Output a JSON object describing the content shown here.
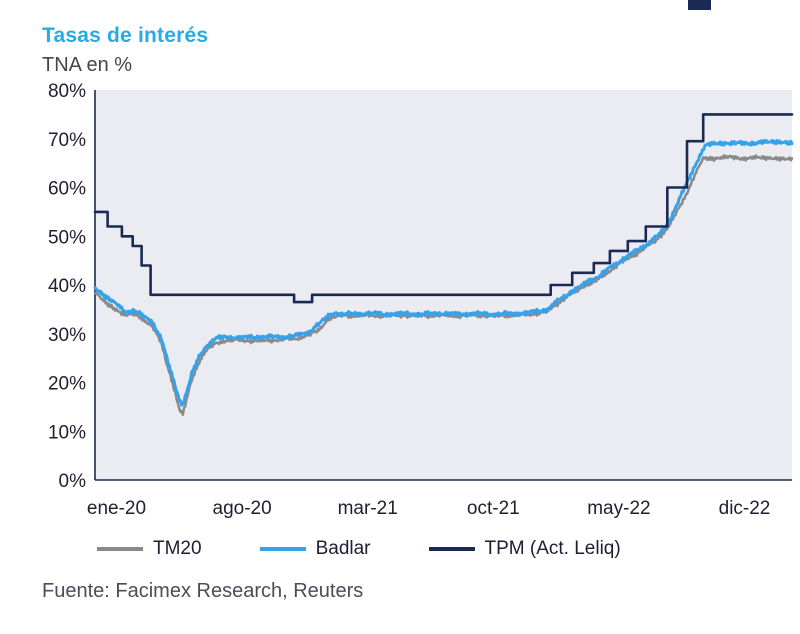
{
  "page": {
    "title": "Tasas de interés",
    "subtitle": "TNA en %",
    "source": "Fuente: Facimex Research, Reuters"
  },
  "colors": {
    "title_accent": "#29abe2",
    "corner_accent": "#1b2a55",
    "text_dark": "#1f1f30"
  },
  "chart_data": {
    "type": "line",
    "title": "Tasas de interés",
    "subtitle": "TNA en %",
    "xlabel": "",
    "ylabel": "TNA en %",
    "ylim": [
      0,
      80
    ],
    "x_range": [
      -1.2,
      37.65
    ],
    "x_unit": "months since Jan 2020",
    "grid": false,
    "legend_position": "bottom",
    "plot_bg": "#ebebf2",
    "axis_color": "#1b2a55",
    "yticks": [
      {
        "v": 0,
        "label": "0%"
      },
      {
        "v": 10,
        "label": "10%"
      },
      {
        "v": 20,
        "label": "20%"
      },
      {
        "v": 30,
        "label": "30%"
      },
      {
        "v": 40,
        "label": "40%"
      },
      {
        "v": 50,
        "label": "50%"
      },
      {
        "v": 60,
        "label": "60%"
      },
      {
        "v": 70,
        "label": "70%"
      },
      {
        "v": 80,
        "label": "80%"
      }
    ],
    "xticks": [
      {
        "x": 0,
        "label": "ene-20"
      },
      {
        "x": 7,
        "label": "ago-20"
      },
      {
        "x": 14,
        "label": "mar-21"
      },
      {
        "x": 21,
        "label": "oct-21"
      },
      {
        "x": 28,
        "label": "may-22"
      },
      {
        "x": 35,
        "label": "dic-22"
      }
    ],
    "series": [
      {
        "name": "TM20",
        "color": "#8a8a8a",
        "width": 2.5,
        "step": false,
        "jitter": 0.55,
        "seed": 2.5,
        "points": [
          [
            -1.2,
            38.5
          ],
          [
            -0.6,
            36.5
          ],
          [
            0,
            35
          ],
          [
            0.5,
            33.8
          ],
          [
            1,
            34
          ],
          [
            1.5,
            33
          ],
          [
            2,
            31.5
          ],
          [
            2.5,
            28
          ],
          [
            2.8,
            24
          ],
          [
            3.2,
            19
          ],
          [
            3.5,
            14.5
          ],
          [
            3.7,
            13.5
          ],
          [
            3.9,
            16.5
          ],
          [
            4.2,
            20.5
          ],
          [
            4.6,
            24
          ],
          [
            5,
            26.5
          ],
          [
            5.5,
            28
          ],
          [
            6,
            28.6
          ],
          [
            7,
            28.7
          ],
          [
            8,
            28.5
          ],
          [
            9,
            28.8
          ],
          [
            10,
            29
          ],
          [
            10.8,
            29.8
          ],
          [
            11.3,
            31
          ],
          [
            11.8,
            33
          ],
          [
            12.2,
            33.7
          ],
          [
            13,
            33.7
          ],
          [
            14,
            33.8
          ],
          [
            15,
            33.7
          ],
          [
            16,
            33.8
          ],
          [
            17,
            33.7
          ],
          [
            18,
            33.8
          ],
          [
            19,
            33.7
          ],
          [
            20,
            33.8
          ],
          [
            21,
            33.7
          ],
          [
            22,
            33.8
          ],
          [
            23,
            34
          ],
          [
            24,
            34.5
          ],
          [
            24.5,
            36
          ],
          [
            25.3,
            38
          ],
          [
            26.2,
            40
          ],
          [
            26.8,
            41
          ],
          [
            27.5,
            43
          ],
          [
            28.3,
            45
          ],
          [
            29,
            46.5
          ],
          [
            29.8,
            48.5
          ],
          [
            30.3,
            50
          ],
          [
            30.8,
            52
          ],
          [
            31.3,
            55.5
          ],
          [
            31.8,
            59
          ],
          [
            32.3,
            63
          ],
          [
            32.7,
            66
          ],
          [
            33.3,
            66
          ],
          [
            34,
            66.2
          ],
          [
            35,
            66
          ],
          [
            36,
            66.1
          ],
          [
            37.65,
            66
          ]
        ]
      },
      {
        "name": "Badlar",
        "color": "#35a3ec",
        "width": 3,
        "step": false,
        "jitter": 0.55,
        "seed": 0,
        "points": [
          [
            -1.2,
            39.5
          ],
          [
            -0.6,
            37.5
          ],
          [
            0,
            36
          ],
          [
            0.5,
            34.5
          ],
          [
            1,
            34.8
          ],
          [
            1.5,
            33.5
          ],
          [
            2,
            32.5
          ],
          [
            2.5,
            29
          ],
          [
            2.8,
            25
          ],
          [
            3.2,
            20
          ],
          [
            3.5,
            16.5
          ],
          [
            3.7,
            15.5
          ],
          [
            3.9,
            18
          ],
          [
            4.2,
            22
          ],
          [
            4.6,
            25.5
          ],
          [
            5,
            27.5
          ],
          [
            5.5,
            29
          ],
          [
            6,
            29.3
          ],
          [
            7,
            29.2
          ],
          [
            8,
            29.4
          ],
          [
            9,
            29.3
          ],
          [
            10,
            29.6
          ],
          [
            10.8,
            30.5
          ],
          [
            11.3,
            32
          ],
          [
            11.8,
            33.8
          ],
          [
            12.2,
            34.2
          ],
          [
            13,
            34
          ],
          [
            14,
            34.2
          ],
          [
            15,
            34
          ],
          [
            16,
            34.1
          ],
          [
            17,
            34
          ],
          [
            18,
            34.2
          ],
          [
            19,
            34
          ],
          [
            20,
            34.1
          ],
          [
            21,
            34
          ],
          [
            22,
            34.1
          ],
          [
            23,
            34.3
          ],
          [
            24,
            35
          ],
          [
            24.5,
            36.5
          ],
          [
            25.3,
            38.5
          ],
          [
            26.2,
            40.5
          ],
          [
            26.8,
            41.5
          ],
          [
            27.5,
            43.5
          ],
          [
            28.3,
            45.5
          ],
          [
            29,
            47
          ],
          [
            29.8,
            49
          ],
          [
            30.3,
            50.5
          ],
          [
            30.8,
            53
          ],
          [
            31.3,
            57
          ],
          [
            31.8,
            61
          ],
          [
            32.3,
            65
          ],
          [
            32.8,
            68.5
          ],
          [
            33.3,
            69
          ],
          [
            34,
            69.2
          ],
          [
            35,
            69
          ],
          [
            36,
            69.3
          ],
          [
            37.65,
            69
          ]
        ]
      },
      {
        "name": "TPM (Act. Leliq)",
        "color": "#1b2a55",
        "width": 2.6,
        "step": true,
        "jitter": 0,
        "seed": 0,
        "points": [
          [
            -1.2,
            55
          ],
          [
            -0.5,
            52
          ],
          [
            0.3,
            50
          ],
          [
            0.9,
            48
          ],
          [
            1.4,
            44
          ],
          [
            1.9,
            38
          ],
          [
            9.9,
            36.5
          ],
          [
            10.9,
            38
          ],
          [
            24.2,
            40
          ],
          [
            25.4,
            42.5
          ],
          [
            26.6,
            44.5
          ],
          [
            27.5,
            47
          ],
          [
            28.5,
            49
          ],
          [
            29.5,
            52
          ],
          [
            30.7,
            60
          ],
          [
            31.8,
            69.5
          ],
          [
            32.7,
            75
          ],
          [
            37.65,
            75
          ]
        ]
      }
    ]
  }
}
